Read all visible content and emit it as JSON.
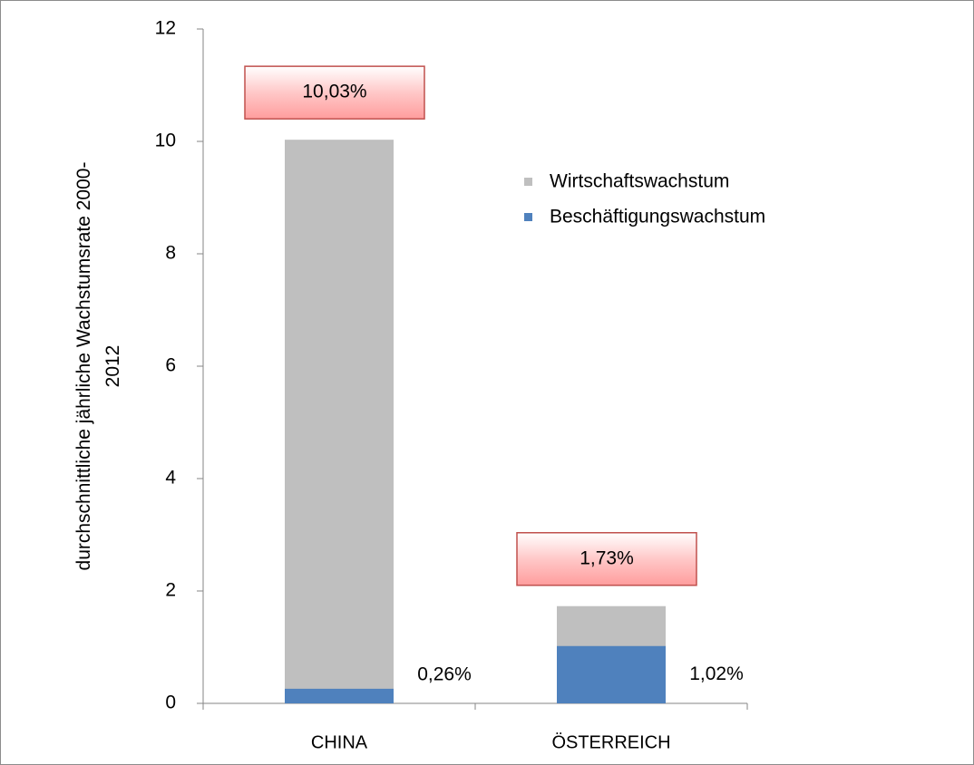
{
  "chart_data": {
    "type": "bar",
    "overlap": true,
    "y_label": "durchschnittliche jährliche Wachstumsrate 2000-2012",
    "categories": [
      "CHINA",
      "ÖSTERREICH"
    ],
    "series": [
      {
        "name": "Wirtschaftswachstum",
        "color": "#bfbfbf",
        "values": [
          10.03,
          1.73
        ],
        "value_labels": [
          "10,03%",
          "1,73%"
        ]
      },
      {
        "name": "Beschäftigungswachstum",
        "color": "#4f81bd",
        "values": [
          0.26,
          1.02
        ],
        "value_labels": [
          "0,26%",
          "1,02%"
        ]
      }
    ],
    "ylim": [
      0,
      12
    ],
    "yticks": [
      0,
      2,
      4,
      6,
      8,
      10,
      12
    ],
    "grid": false,
    "legend": "upper right"
  }
}
